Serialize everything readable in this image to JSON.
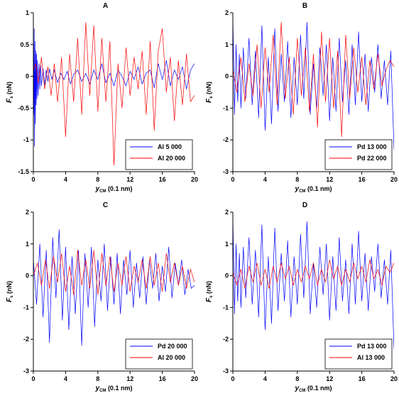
{
  "chart_data": [
    {
      "type": "line",
      "panel": "A",
      "xlabel_main": "y",
      "xlabel_sub": "CM",
      "xlabel_unit": " (0.1 nm)",
      "ylabel_main": "F",
      "ylabel_sub": "s",
      "ylabel_unit": " (nN)",
      "xlim": [
        0,
        20
      ],
      "ylim": [
        -1.5,
        1
      ],
      "xticks": [
        0,
        4,
        8,
        12,
        16,
        20
      ],
      "yticks": [
        -1.5,
        -1,
        -0.5,
        0,
        0.5,
        1
      ],
      "ytick_labels": [
        "-1.5",
        "-1",
        "-0.5",
        "0",
        "0.5",
        "1"
      ],
      "legend_position": "bottom-right",
      "series": [
        {
          "name": "Al 5 000",
          "color": "#0000ff",
          "x": [
            0,
            0.05,
            0.1,
            0.15,
            0.2,
            0.25,
            0.3,
            0.35,
            0.4,
            0.45,
            0.5,
            0.6,
            0.7,
            0.8,
            0.9,
            1.0,
            1.2,
            1.4,
            1.6,
            1.8,
            2.0,
            2.3,
            2.6,
            3.0,
            3.4,
            3.8,
            4.2,
            4.6,
            5.0,
            5.5,
            6.0,
            6.5,
            7.0,
            7.5,
            8.0,
            8.5,
            9.0,
            9.5,
            10.0,
            10.5,
            11.0,
            11.5,
            12.0,
            12.5,
            13.0,
            13.5,
            14.0,
            14.5,
            15.0,
            15.5,
            16.0,
            16.5,
            17.0,
            17.5,
            18.0,
            18.5,
            19.0,
            19.5,
            20.0
          ],
          "values": [
            0.95,
            -0.6,
            0.75,
            -1.1,
            0.55,
            -0.75,
            0.4,
            -0.45,
            0.35,
            -0.35,
            0.25,
            -0.3,
            0.2,
            -0.2,
            0.18,
            -0.15,
            0.12,
            -0.14,
            0.1,
            -0.08,
            0.12,
            -0.05,
            0.1,
            -0.1,
            0.05,
            -0.05,
            0.08,
            -0.12,
            0.03,
            0.1,
            -0.08,
            0.05,
            -0.12,
            0.1,
            -0.05,
            0.2,
            -0.1,
            0.05,
            -0.15,
            0.1,
            0.0,
            -0.15,
            0.08,
            -0.05,
            0.15,
            -0.12,
            0.05,
            0.1,
            -0.18,
            0.2,
            -0.05,
            0.25,
            -0.15,
            0.1,
            -0.05,
            0.15,
            -0.2,
            0.1,
            0.2
          ]
        },
        {
          "name": "Al 20 000",
          "color": "#ff0000",
          "x": [
            0,
            0.3,
            0.6,
            1.0,
            1.4,
            1.8,
            2.2,
            2.6,
            3.0,
            3.5,
            4.0,
            4.5,
            5.0,
            5.5,
            6.0,
            6.5,
            7.0,
            7.5,
            8.0,
            8.5,
            9.0,
            9.5,
            10.0,
            10.5,
            11.0,
            11.5,
            12.0,
            12.5,
            13.0,
            13.5,
            14.0,
            14.5,
            15.0,
            15.5,
            16.0,
            16.5,
            17.0,
            17.5,
            18.0,
            18.5,
            19.0,
            19.5,
            20.0
          ],
          "values": [
            0.1,
            0.2,
            -0.1,
            0.3,
            -0.2,
            0.15,
            -0.3,
            0.2,
            -0.4,
            0.3,
            -0.95,
            0.35,
            -0.4,
            0.6,
            -0.6,
            0.85,
            -0.3,
            0.8,
            -0.55,
            0.6,
            -0.4,
            0.55,
            -1.4,
            0.2,
            -0.5,
            0.45,
            -0.3,
            0.3,
            -0.2,
            0.4,
            -0.6,
            0.55,
            -0.85,
            0.4,
            0.75,
            -0.25,
            0.3,
            -0.7,
            0.25,
            -0.45,
            0.35,
            -0.4,
            -0.3
          ]
        }
      ]
    },
    {
      "type": "line",
      "panel": "B",
      "xlabel_main": "y",
      "xlabel_sub": "CM",
      "xlabel_unit": " (0.1 nm)",
      "ylabel_main": "F",
      "ylabel_sub": "s",
      "ylabel_unit": " (nN)",
      "xlim": [
        0,
        20
      ],
      "ylim": [
        -3,
        2
      ],
      "xticks": [
        0,
        4,
        8,
        12,
        16,
        20
      ],
      "yticks": [
        -3,
        -2,
        -1,
        0,
        1,
        2
      ],
      "ytick_labels": [
        "-3",
        "-2",
        "-1",
        "0",
        "1",
        "2"
      ],
      "legend_position": "bottom-right",
      "series": [
        {
          "name": "Pd 13 000",
          "color": "#0000ff",
          "x": [
            0,
            0.2,
            0.4,
            0.6,
            0.8,
            1.0,
            1.3,
            1.6,
            2.0,
            2.4,
            2.8,
            3.2,
            3.6,
            4.0,
            4.4,
            4.8,
            5.2,
            5.6,
            6.0,
            6.4,
            6.8,
            7.2,
            7.6,
            8.0,
            8.4,
            8.8,
            9.2,
            9.6,
            10.0,
            10.4,
            10.8,
            11.2,
            11.6,
            12.0,
            12.4,
            12.8,
            13.2,
            13.6,
            14.0,
            14.4,
            14.8,
            15.2,
            15.6,
            16.0,
            16.4,
            16.8,
            17.2,
            17.6,
            18.0,
            18.4,
            18.8,
            19.2,
            19.6,
            20.0
          ],
          "values": [
            1.9,
            -1.2,
            1.0,
            -0.8,
            0.7,
            -1.0,
            0.9,
            -0.7,
            1.2,
            -0.9,
            0.8,
            -1.3,
            1.6,
            -1.7,
            0.6,
            -1.5,
            1.5,
            -1.1,
            0.7,
            -0.8,
            1.1,
            -1.3,
            0.6,
            -0.9,
            1.3,
            -0.7,
            1.7,
            -1.2,
            0.4,
            -1.0,
            0.9,
            -0.6,
            1.0,
            -1.4,
            0.6,
            -1.1,
            1.2,
            -0.8,
            0.5,
            -1.2,
            1.0,
            -0.9,
            1.4,
            -0.8,
            0.7,
            -1.1,
            0.6,
            -0.5,
            1.0,
            -0.7,
            0.5,
            -0.9,
            0.8,
            -2.3
          ]
        },
        {
          "name": "Pd 22 000",
          "color": "#ff0000",
          "x": [
            0,
            0.5,
            1.0,
            1.5,
            2.0,
            2.5,
            3.0,
            3.5,
            4.0,
            4.5,
            5.0,
            5.5,
            6.0,
            6.5,
            7.0,
            7.5,
            8.0,
            8.5,
            9.0,
            9.5,
            10.0,
            10.5,
            11.0,
            11.5,
            12.0,
            12.5,
            13.0,
            13.5,
            14.0,
            14.5,
            15.0,
            15.5,
            16.0,
            16.5,
            17.0,
            17.5,
            18.0,
            18.5,
            19.0,
            19.5,
            20.0
          ],
          "values": [
            0.2,
            -0.5,
            0.6,
            -0.8,
            0.4,
            -0.6,
            1.0,
            -1.0,
            0.9,
            -0.5,
            1.3,
            -0.9,
            1.7,
            -0.7,
            0.6,
            -1.2,
            1.2,
            -0.6,
            0.9,
            -1.1,
            0.7,
            -1.6,
            1.4,
            -0.8,
            1.2,
            -1.0,
            0.8,
            -1.9,
            1.3,
            -0.7,
            0.9,
            -0.5,
            0.6,
            -0.9,
            0.5,
            -0.4,
            0.7,
            -0.3,
            0.2,
            0.5,
            0.3
          ]
        }
      ]
    },
    {
      "type": "line",
      "panel": "C",
      "xlabel_main": "y",
      "xlabel_sub": "CM",
      "xlabel_unit": " (0.1 nm)",
      "ylabel_main": "F",
      "ylabel_sub": "s",
      "ylabel_unit": " (nN)",
      "xlim": [
        0,
        20
      ],
      "ylim": [
        -3,
        2
      ],
      "xticks": [
        0,
        4,
        8,
        12,
        16,
        20
      ],
      "yticks": [
        -3,
        -2,
        -1,
        0,
        1,
        2
      ],
      "ytick_labels": [
        "-3",
        "-2",
        "-1",
        "0",
        "1",
        "2"
      ],
      "legend_position": "bottom-right",
      "series": [
        {
          "name": "Pd 20 000",
          "color": "#0000ff",
          "x": [
            0,
            0.4,
            0.8,
            1.2,
            1.6,
            2.0,
            2.4,
            2.8,
            3.2,
            3.6,
            4.0,
            4.4,
            4.8,
            5.2,
            5.6,
            6.0,
            6.4,
            6.8,
            7.2,
            7.6,
            8.0,
            8.4,
            8.8,
            9.2,
            9.6,
            10.0,
            10.4,
            10.8,
            11.2,
            11.6,
            12.0,
            12.4,
            12.8,
            13.2,
            13.6,
            14.0,
            14.4,
            14.8,
            15.2,
            15.6,
            16.0,
            16.4,
            16.8,
            17.2,
            17.6,
            18.0,
            18.4,
            18.8,
            19.2,
            19.6,
            20.0
          ],
          "values": [
            0.5,
            -0.9,
            1.0,
            -1.3,
            0.8,
            -2.1,
            1.2,
            -0.7,
            1.45,
            -1.4,
            0.9,
            -1.7,
            0.6,
            -1.2,
            0.8,
            -2.2,
            0.7,
            -1.0,
            0.9,
            -1.6,
            0.5,
            -0.8,
            1.0,
            -1.1,
            0.6,
            -0.9,
            0.7,
            -1.2,
            0.5,
            -0.6,
            0.8,
            -1.0,
            0.4,
            -0.7,
            0.6,
            -0.9,
            0.5,
            -0.4,
            0.7,
            -0.8,
            0.3,
            -0.5,
            0.9,
            -0.7,
            0.4,
            -0.3,
            0.5,
            -0.6,
            0.2,
            -0.4,
            -0.3
          ]
        },
        {
          "name": "Al 20 000",
          "color": "#ff0000",
          "x": [
            0,
            0.5,
            1.0,
            1.5,
            2.0,
            2.5,
            3.0,
            3.5,
            4.0,
            4.5,
            5.0,
            5.5,
            6.0,
            6.5,
            7.0,
            7.5,
            8.0,
            8.5,
            9.0,
            9.5,
            10.0,
            10.5,
            11.0,
            11.5,
            12.0,
            12.5,
            13.0,
            13.5,
            14.0,
            14.5,
            15.0,
            15.5,
            16.0,
            16.5,
            17.0,
            17.5,
            18.0,
            18.5,
            19.0,
            19.5,
            20.0
          ],
          "values": [
            0.0,
            0.4,
            -0.3,
            0.5,
            -0.4,
            0.6,
            -0.2,
            0.7,
            -0.5,
            0.3,
            -0.6,
            0.8,
            -0.3,
            0.5,
            -0.4,
            0.8,
            -0.6,
            0.7,
            -0.3,
            0.6,
            -0.5,
            0.4,
            -0.3,
            0.6,
            -0.5,
            0.3,
            -0.2,
            0.5,
            -0.4,
            0.6,
            -0.3,
            0.4,
            -0.5,
            0.7,
            -0.2,
            0.4,
            -0.3,
            0.3,
            -0.4,
            0.2,
            -0.2
          ]
        }
      ]
    },
    {
      "type": "line",
      "panel": "D",
      "xlabel_main": "y",
      "xlabel_sub": "CM",
      "xlabel_unit": " (0.1 nm)",
      "ylabel_main": "F",
      "ylabel_sub": "s",
      "ylabel_unit": " (nN)",
      "xlim": [
        0,
        20
      ],
      "ylim": [
        -3,
        2
      ],
      "xticks": [
        0,
        4,
        8,
        12,
        16,
        20
      ],
      "yticks": [
        -3,
        -2,
        -1,
        0,
        1,
        2
      ],
      "ytick_labels": [
        "-3",
        "-2",
        "-1",
        "0",
        "1",
        "2"
      ],
      "legend_position": "bottom-right",
      "series": [
        {
          "name": "Pd 13 000",
          "color": "#0000ff",
          "x": [
            0,
            0.2,
            0.4,
            0.6,
            0.8,
            1.0,
            1.3,
            1.6,
            2.0,
            2.4,
            2.8,
            3.2,
            3.6,
            4.0,
            4.4,
            4.8,
            5.2,
            5.6,
            6.0,
            6.4,
            6.8,
            7.2,
            7.6,
            8.0,
            8.4,
            8.8,
            9.2,
            9.6,
            10.0,
            10.4,
            10.8,
            11.2,
            11.6,
            12.0,
            12.4,
            12.8,
            13.2,
            13.6,
            14.0,
            14.4,
            14.8,
            15.2,
            15.6,
            16.0,
            16.4,
            16.8,
            17.2,
            17.6,
            18.0,
            18.4,
            18.8,
            19.2,
            19.6,
            20.0
          ],
          "values": [
            1.9,
            -1.2,
            1.0,
            -0.8,
            0.7,
            -1.0,
            0.9,
            -0.7,
            1.2,
            -0.9,
            0.8,
            -1.3,
            1.6,
            -1.7,
            0.6,
            -1.5,
            1.5,
            -1.1,
            0.7,
            -0.8,
            1.1,
            -1.3,
            0.6,
            -0.9,
            1.3,
            -0.7,
            1.7,
            -1.2,
            0.4,
            -1.0,
            0.9,
            -0.6,
            1.0,
            -1.4,
            0.6,
            -1.1,
            1.2,
            -0.8,
            0.5,
            -1.2,
            1.0,
            -0.9,
            1.4,
            -0.8,
            0.7,
            -1.1,
            0.6,
            -0.5,
            1.0,
            -0.7,
            0.5,
            -0.9,
            0.8,
            -2.3
          ]
        },
        {
          "name": "Al 13 000",
          "color": "#ff0000",
          "x": [
            0,
            0.5,
            1.0,
            1.5,
            2.0,
            2.5,
            3.0,
            3.5,
            4.0,
            4.5,
            5.0,
            5.5,
            6.0,
            6.5,
            7.0,
            7.5,
            8.0,
            8.5,
            9.0,
            9.5,
            10.0,
            10.5,
            11.0,
            11.5,
            12.0,
            12.5,
            13.0,
            13.5,
            14.0,
            14.5,
            15.0,
            15.5,
            16.0,
            16.5,
            17.0,
            17.5,
            18.0,
            18.5,
            19.0,
            19.5,
            20.0
          ],
          "values": [
            0.1,
            -0.3,
            0.2,
            -0.4,
            0.3,
            -0.2,
            0.4,
            -0.3,
            0.2,
            -0.4,
            0.3,
            -0.2,
            0.4,
            -0.1,
            0.3,
            -0.3,
            0.2,
            -0.2,
            0.3,
            -0.1,
            0.4,
            -0.3,
            0.2,
            -0.2,
            0.5,
            -0.1,
            0.3,
            -0.3,
            0.2,
            -0.2,
            0.4,
            -0.1,
            0.3,
            -0.2,
            0.5,
            -0.1,
            0.2,
            -0.3,
            0.3,
            0.1,
            0.4
          ]
        }
      ]
    }
  ]
}
